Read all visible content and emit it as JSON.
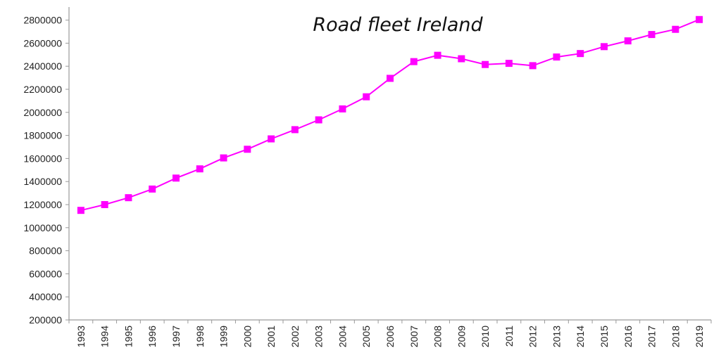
{
  "chart_data": {
    "type": "line",
    "title": "Road fleet Ireland",
    "xlabel": "",
    "ylabel": "",
    "x": [
      "1993",
      "1994",
      "1995",
      "1996",
      "1997",
      "1998",
      "1999",
      "2000",
      "2001",
      "2002",
      "2003",
      "2004",
      "2005",
      "2006",
      "2007",
      "2008",
      "2009",
      "2010",
      "2011",
      "2012",
      "2013",
      "2014",
      "2015",
      "2016",
      "2017",
      "2018",
      "2019"
    ],
    "series": [
      {
        "values": [
          1150000,
          1200000,
          1260000,
          1335000,
          1430000,
          1510000,
          1605000,
          1680000,
          1770000,
          1850000,
          1935000,
          2030000,
          2135000,
          2295000,
          2440000,
          2495000,
          2465000,
          2415000,
          2425000,
          2405000,
          2480000,
          2510000,
          2570000,
          2620000,
          2675000,
          2720000,
          2805000
        ],
        "color": "#ff00ff",
        "marker": "square"
      }
    ],
    "ylim": [
      200000,
      2900000
    ],
    "yticks": [
      "200000",
      "400000",
      "600000",
      "800000",
      "1000000",
      "1200000",
      "1400000",
      "1600000",
      "1800000",
      "2000000",
      "2200000",
      "2400000",
      "2600000",
      "2800000"
    ],
    "grid": false,
    "legend": "none"
  }
}
